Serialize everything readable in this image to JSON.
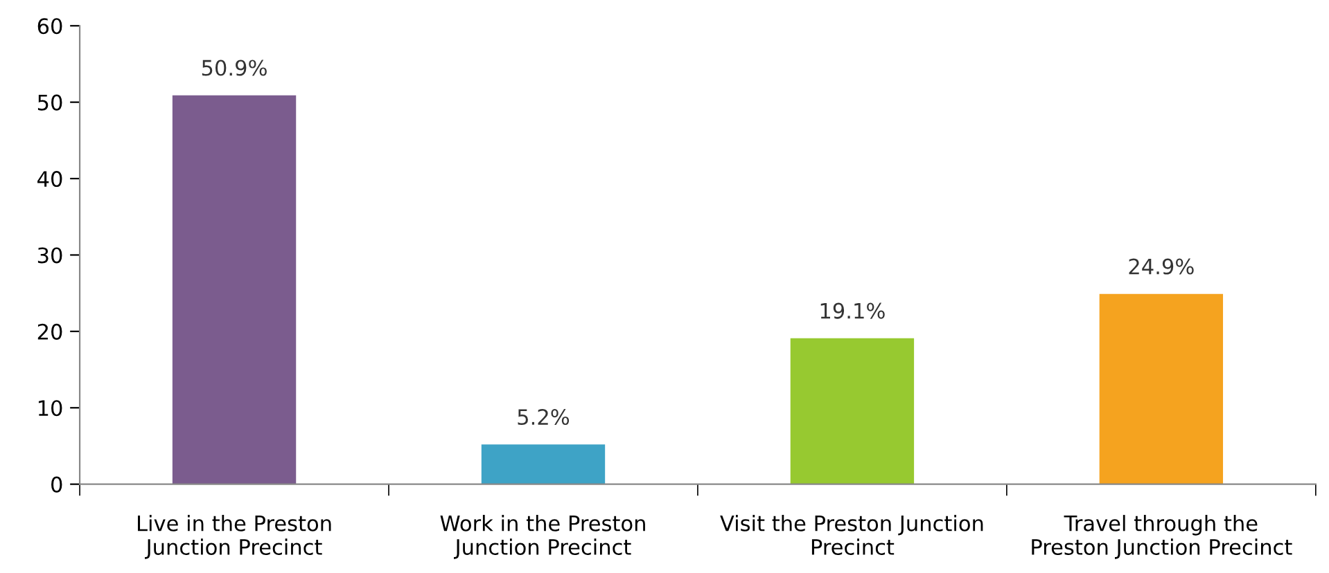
{
  "chart_data": {
    "type": "bar",
    "categories": [
      "Live in the Preston\nJunction Precinct",
      "Work in the Preston\nJunction Precinct",
      "Visit the Preston Junction\nPrecinct",
      "Travel through the\nPreston Junction Precinct"
    ],
    "values": [
      50.9,
      5.2,
      19.1,
      24.9
    ],
    "colors": [
      "#7b5c8e",
      "#3ea3c6",
      "#97c930",
      "#f5a31f"
    ],
    "value_labels": [
      "50.9%",
      "5.2%",
      "19.1%",
      "24.9%"
    ],
    "ylim": [
      0,
      60
    ],
    "yticks": [
      0,
      10,
      20,
      30,
      40,
      50,
      60
    ],
    "grid": false
  }
}
